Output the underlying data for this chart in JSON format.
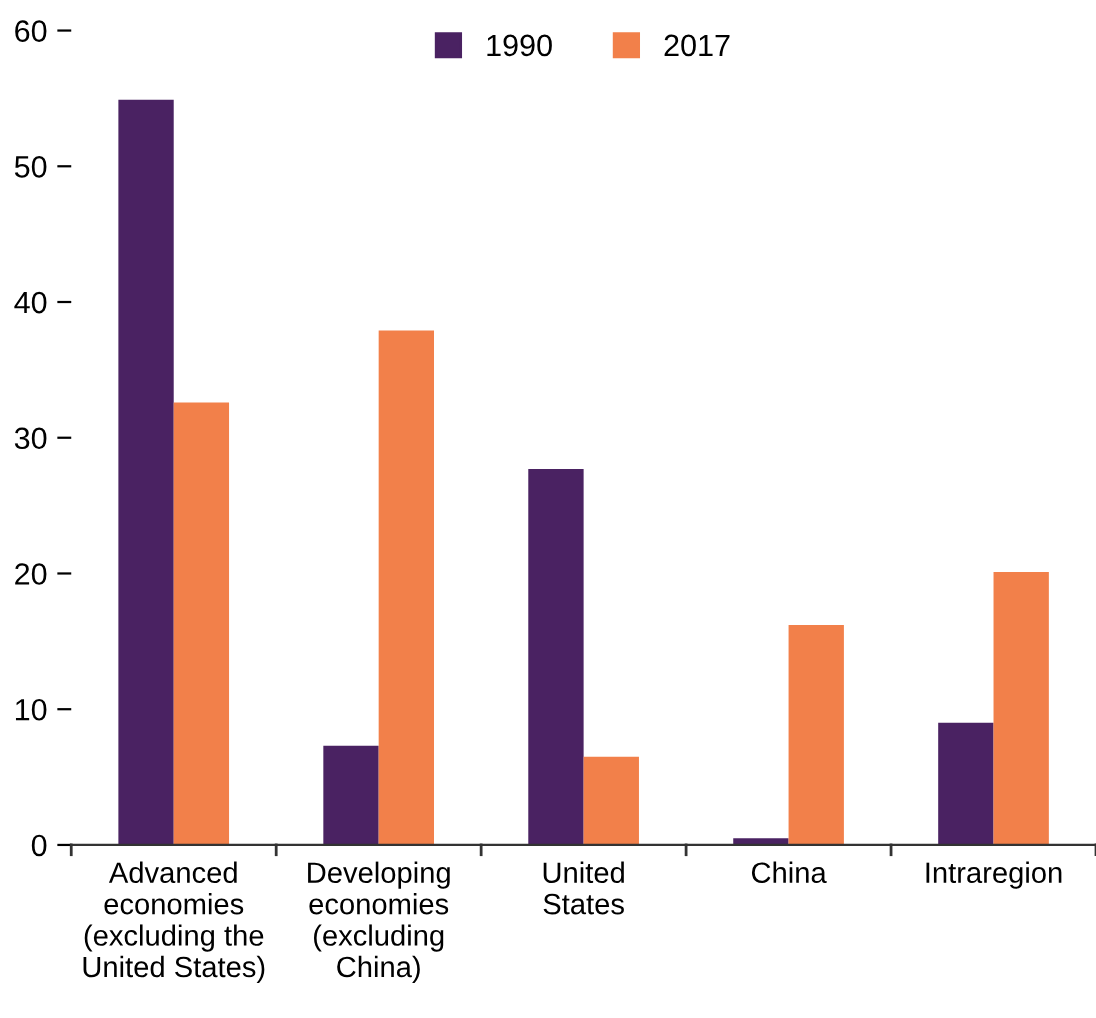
{
  "chart_data": {
    "type": "bar",
    "categories": [
      "Advanced\neconomies\n(excluding the\nUnited States)",
      "Developing\neconomies\n(excluding\nChina)",
      "United\nStates",
      "China",
      "Intraregion"
    ],
    "series": [
      {
        "name": "1990",
        "color": "#4a2262",
        "values": [
          54.9,
          7.3,
          27.7,
          0.5,
          9.0
        ]
      },
      {
        "name": "2017",
        "color": "#f2804a",
        "values": [
          32.6,
          37.9,
          6.5,
          16.2,
          20.1
        ]
      }
    ],
    "ylim": [
      0,
      60
    ],
    "yticks": [
      0,
      10,
      20,
      30,
      40,
      50,
      60
    ],
    "grid": false,
    "legend": "top"
  }
}
